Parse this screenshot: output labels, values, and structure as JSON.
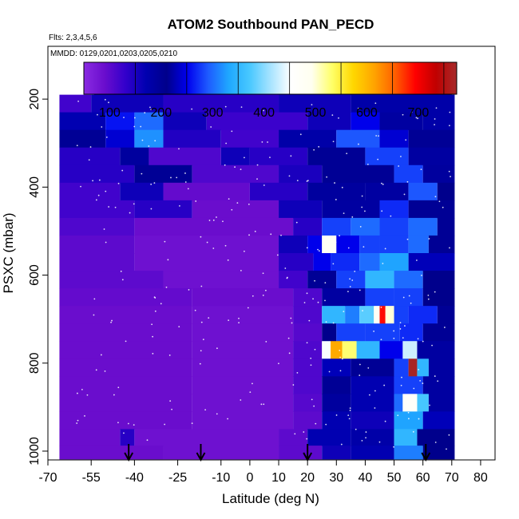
{
  "chart_data": {
    "type": "heatmap",
    "title": "ATOM2 Southbound PAN_PECD",
    "flights_label": "Flts: 2,3,4,5,6",
    "dates_label": "MMDD: 0129,0201,0203,0205,0210",
    "xlabel": "Latitude (deg N)",
    "ylabel": "PSXC (mbar)",
    "xlim": [
      -70,
      85
    ],
    "ylim": [
      1020,
      80
    ],
    "x_ticks": [
      "-70",
      "-55",
      "-40",
      "-25",
      "-10",
      "0",
      "10",
      "20",
      "30",
      "40",
      "50",
      "60",
      "70",
      "80"
    ],
    "x_tick_values": [
      -70,
      -55,
      -40,
      -25,
      -10,
      0,
      10,
      20,
      30,
      40,
      50,
      60,
      70,
      80
    ],
    "y_ticks": [
      "200",
      "400",
      "600",
      "800",
      "1000"
    ],
    "y_tick_values": [
      200,
      400,
      600,
      800,
      1000
    ],
    "colorbar": {
      "min": 0,
      "max": 725,
      "tick_labels": [
        "100",
        "200",
        "300",
        "400",
        "500",
        "600",
        "700"
      ],
      "tick_values": [
        100,
        200,
        300,
        400,
        500,
        600,
        700
      ],
      "colors": [
        "#8a2be2",
        "#6a0dcd",
        "#3300cc",
        "#0000b0",
        "#00008b",
        "#0000ee",
        "#1e5bff",
        "#1fa8ff",
        "#48c8ff",
        "#a6e3ff",
        "#ffffff",
        "#fffff0",
        "#ffff66",
        "#ffd700",
        "#ffa500",
        "#ff6000",
        "#ff0000",
        "#c00000",
        "#a52a2a"
      ]
    },
    "rows": [
      {
        "p": 170,
        "segs": [
          [
            -54,
            70,
            150
          ]
        ]
      },
      {
        "p": 210,
        "segs": [
          [
            -66,
            -55,
            70
          ],
          [
            -55,
            -30,
            110
          ],
          [
            -30,
            10,
            90
          ],
          [
            10,
            35,
            110
          ],
          [
            35,
            71,
            130
          ]
        ]
      },
      {
        "p": 250,
        "segs": [
          [
            -66,
            -50,
            120
          ],
          [
            -50,
            -40,
            210
          ],
          [
            -40,
            -30,
            250
          ],
          [
            -30,
            -15,
            110
          ],
          [
            -15,
            20,
            75
          ],
          [
            20,
            35,
            110
          ],
          [
            35,
            45,
            200
          ],
          [
            45,
            60,
            170
          ],
          [
            60,
            71,
            130
          ]
        ]
      },
      {
        "p": 290,
        "segs": [
          [
            -66,
            -50,
            150
          ],
          [
            -50,
            -40,
            190
          ],
          [
            -40,
            -30,
            270
          ],
          [
            -30,
            -10,
            95
          ],
          [
            -10,
            10,
            70
          ],
          [
            10,
            30,
            130
          ],
          [
            30,
            45,
            240
          ],
          [
            45,
            55,
            190
          ],
          [
            55,
            71,
            150
          ]
        ]
      },
      {
        "p": 330,
        "segs": [
          [
            -66,
            -45,
            90
          ],
          [
            -45,
            -35,
            140
          ],
          [
            -35,
            -10,
            60
          ],
          [
            -10,
            0,
            110
          ],
          [
            0,
            20,
            90
          ],
          [
            20,
            40,
            150
          ],
          [
            40,
            55,
            230
          ],
          [
            55,
            71,
            170
          ]
        ]
      },
      {
        "p": 370,
        "segs": [
          [
            -66,
            -40,
            90
          ],
          [
            -40,
            -20,
            150
          ],
          [
            -20,
            10,
            60
          ],
          [
            10,
            25,
            100
          ],
          [
            25,
            50,
            150
          ],
          [
            50,
            60,
            230
          ],
          [
            60,
            71,
            140
          ]
        ]
      },
      {
        "p": 410,
        "segs": [
          [
            -66,
            -45,
            70
          ],
          [
            -45,
            -30,
            110
          ],
          [
            -30,
            0,
            45
          ],
          [
            0,
            20,
            90
          ],
          [
            20,
            40,
            140
          ],
          [
            40,
            55,
            170
          ],
          [
            55,
            65,
            240
          ],
          [
            65,
            71,
            160
          ]
        ]
      },
      {
        "p": 450,
        "segs": [
          [
            -66,
            -40,
            70
          ],
          [
            -40,
            -20,
            90
          ],
          [
            -20,
            10,
            40
          ],
          [
            10,
            25,
            110
          ],
          [
            25,
            45,
            170
          ],
          [
            45,
            55,
            220
          ],
          [
            55,
            71,
            150
          ]
        ]
      },
      {
        "p": 490,
        "segs": [
          [
            -66,
            -40,
            60
          ],
          [
            -40,
            15,
            40
          ],
          [
            15,
            25,
            90
          ],
          [
            25,
            35,
            230
          ],
          [
            35,
            45,
            250
          ],
          [
            45,
            55,
            230
          ],
          [
            55,
            65,
            250
          ],
          [
            65,
            71,
            150
          ]
        ]
      },
      {
        "p": 530,
        "segs": [
          [
            -66,
            -40,
            50
          ],
          [
            -40,
            10,
            35
          ],
          [
            10,
            20,
            110
          ],
          [
            20,
            25,
            200
          ],
          [
            25,
            30,
            430
          ],
          [
            30,
            38,
            200
          ],
          [
            38,
            45,
            230
          ],
          [
            45,
            55,
            230
          ],
          [
            55,
            62,
            250
          ],
          [
            62,
            71,
            150
          ]
        ]
      },
      {
        "p": 570,
        "segs": [
          [
            -66,
            -40,
            50
          ],
          [
            -40,
            10,
            35
          ],
          [
            10,
            22,
            90
          ],
          [
            22,
            28,
            200
          ],
          [
            28,
            38,
            220
          ],
          [
            38,
            45,
            250
          ],
          [
            45,
            55,
            280
          ],
          [
            55,
            71,
            180
          ]
        ]
      },
      {
        "p": 610,
        "segs": [
          [
            -66,
            -30,
            50
          ],
          [
            -30,
            10,
            35
          ],
          [
            10,
            20,
            70
          ],
          [
            20,
            30,
            150
          ],
          [
            30,
            40,
            230
          ],
          [
            40,
            50,
            300
          ],
          [
            50,
            60,
            250
          ],
          [
            60,
            71,
            160
          ]
        ]
      },
      {
        "p": 650,
        "segs": [
          [
            -66,
            -20,
            45
          ],
          [
            -20,
            15,
            40
          ],
          [
            15,
            25,
            60
          ],
          [
            25,
            40,
            170
          ],
          [
            40,
            50,
            230
          ],
          [
            50,
            60,
            230
          ],
          [
            60,
            71,
            160
          ]
        ]
      },
      {
        "p": 690,
        "segs": [
          [
            -66,
            -20,
            40
          ],
          [
            -20,
            15,
            35
          ],
          [
            15,
            25,
            60
          ],
          [
            25,
            33,
            300
          ],
          [
            33,
            38,
            260
          ],
          [
            38,
            43,
            330
          ],
          [
            43,
            45,
            430
          ],
          [
            45,
            47,
            640
          ],
          [
            47,
            50,
            450
          ],
          [
            50,
            55,
            230
          ],
          [
            55,
            65,
            220
          ],
          [
            65,
            71,
            150
          ]
        ]
      },
      {
        "p": 730,
        "segs": [
          [
            -66,
            -20,
            40
          ],
          [
            -20,
            15,
            35
          ],
          [
            15,
            25,
            55
          ],
          [
            25,
            30,
            160
          ],
          [
            30,
            40,
            230
          ],
          [
            40,
            52,
            230
          ],
          [
            52,
            60,
            220
          ],
          [
            60,
            71,
            150
          ]
        ]
      },
      {
        "p": 770,
        "segs": [
          [
            -66,
            -20,
            40
          ],
          [
            -20,
            15,
            35
          ],
          [
            15,
            25,
            60
          ],
          [
            25,
            28,
            400
          ],
          [
            28,
            32,
            560
          ],
          [
            32,
            37,
            480
          ],
          [
            37,
            45,
            300
          ],
          [
            45,
            53,
            200
          ],
          [
            53,
            58,
            380
          ],
          [
            58,
            71,
            170
          ]
        ]
      },
      {
        "p": 810,
        "segs": [
          [
            -66,
            -20,
            40
          ],
          [
            -20,
            15,
            35
          ],
          [
            15,
            25,
            60
          ],
          [
            25,
            35,
            180
          ],
          [
            35,
            50,
            150
          ],
          [
            50,
            55,
            230
          ],
          [
            55,
            58,
            720
          ],
          [
            58,
            62,
            300
          ],
          [
            62,
            71,
            170
          ]
        ]
      },
      {
        "p": 850,
        "segs": [
          [
            -66,
            -20,
            40
          ],
          [
            -20,
            15,
            35
          ],
          [
            15,
            25,
            60
          ],
          [
            25,
            35,
            150
          ],
          [
            35,
            50,
            120
          ],
          [
            50,
            60,
            230
          ],
          [
            60,
            71,
            170
          ]
        ]
      },
      {
        "p": 890,
        "segs": [
          [
            -66,
            -20,
            40
          ],
          [
            -20,
            15,
            35
          ],
          [
            15,
            25,
            55
          ],
          [
            25,
            35,
            140
          ],
          [
            35,
            50,
            120
          ],
          [
            50,
            53,
            250
          ],
          [
            53,
            58,
            420
          ],
          [
            58,
            62,
            320
          ],
          [
            62,
            71,
            170
          ]
        ]
      },
      {
        "p": 930,
        "segs": [
          [
            -66,
            -20,
            40
          ],
          [
            -20,
            15,
            35
          ],
          [
            15,
            25,
            50
          ],
          [
            25,
            35,
            120
          ],
          [
            35,
            50,
            110
          ],
          [
            50,
            60,
            280
          ],
          [
            60,
            71,
            180
          ]
        ]
      },
      {
        "p": 970,
        "segs": [
          [
            -66,
            -45,
            40
          ],
          [
            -45,
            -40,
            90
          ],
          [
            -40,
            10,
            35
          ],
          [
            10,
            20,
            50
          ],
          [
            20,
            35,
            120
          ],
          [
            35,
            50,
            130
          ],
          [
            50,
            58,
            300
          ],
          [
            58,
            71,
            160
          ]
        ]
      },
      {
        "p": 1005,
        "segs": [
          [
            -66,
            -30,
            40
          ],
          [
            -30,
            10,
            35
          ],
          [
            10,
            25,
            50
          ],
          [
            25,
            35,
            110
          ],
          [
            35,
            50,
            120
          ],
          [
            50,
            60,
            260
          ],
          [
            60,
            71,
            160
          ]
        ]
      }
    ],
    "arrows_latitude": [
      -42,
      -17,
      20,
      61
    ]
  }
}
